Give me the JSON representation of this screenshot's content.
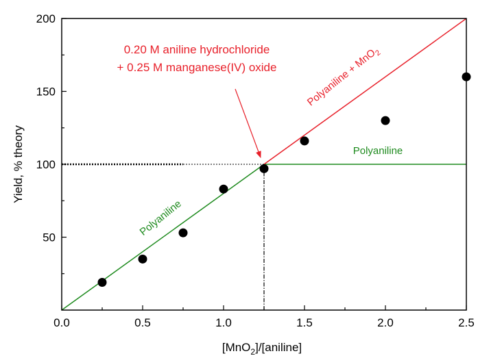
{
  "chart_data": {
    "type": "scatter",
    "title": "",
    "xlabel_prefix": "[MnO",
    "xlabel_sub": "2",
    "xlabel_suffix": "]/[aniline]",
    "ylabel": "Yield, % theory",
    "xlim": [
      0,
      2.5
    ],
    "ylim": [
      0,
      200
    ],
    "xticks": [
      "0.0",
      "0.5",
      "1.0",
      "1.5",
      "2.0",
      "2.5"
    ],
    "yticks": [
      "50",
      "100",
      "150",
      "200"
    ],
    "xtick_values": [
      0,
      0.5,
      1.0,
      1.5,
      2.0,
      2.5
    ],
    "ytick_values": [
      50,
      100,
      150,
      200
    ],
    "points": [
      {
        "x": 0.25,
        "y": 19
      },
      {
        "x": 0.5,
        "y": 35
      },
      {
        "x": 0.75,
        "y": 53
      },
      {
        "x": 1.0,
        "y": 83
      },
      {
        "x": 1.25,
        "y": 97
      },
      {
        "x": 1.5,
        "y": 116
      },
      {
        "x": 2.0,
        "y": 130
      },
      {
        "x": 2.5,
        "y": 160
      }
    ],
    "lines": [
      {
        "name": "Polyaniline",
        "color": "#1d8a1d",
        "points": [
          [
            0,
            0
          ],
          [
            1.25,
            100
          ],
          [
            2.5,
            100
          ]
        ]
      },
      {
        "name": "Polyaniline + MnO2",
        "color": "#e8202a",
        "points": [
          [
            1.25,
            100
          ],
          [
            2.5,
            200
          ]
        ]
      }
    ],
    "reference": {
      "x": 1.25,
      "y": 100
    },
    "annotations": {
      "conditions_line1": "0.20 M aniline hydrochloride",
      "conditions_line2": "+ 0.25 M manganese(IV) oxide",
      "green_low_label": "Polyaniline",
      "green_high_label": "Polyaniline",
      "red_label_prefix": "Polyaniline + MnO",
      "red_label_sub": "2"
    },
    "colors": {
      "green": "#1d8a1d",
      "red": "#e8202a",
      "points": "#000000"
    }
  }
}
